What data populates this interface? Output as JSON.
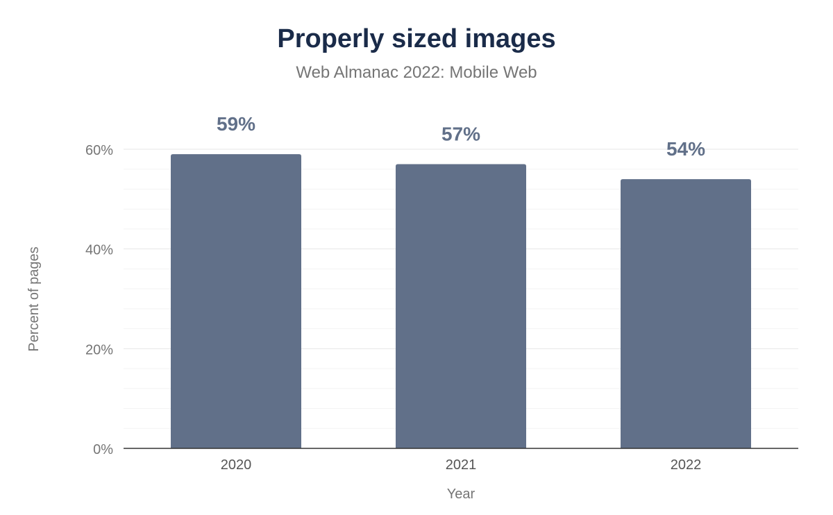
{
  "chart_data": {
    "type": "bar",
    "title": "Properly sized images",
    "subtitle": "Web Almanac 2022: Mobile Web",
    "xlabel": "Year",
    "ylabel": "Percent of pages",
    "categories": [
      "2020",
      "2021",
      "2022"
    ],
    "values": [
      59,
      57,
      54
    ],
    "data_labels": [
      "59%",
      "57%",
      "54%"
    ],
    "ylim": [
      0,
      60
    ],
    "yticks": [
      0,
      20,
      40,
      60
    ],
    "ytick_labels": [
      "0%",
      "20%",
      "40%",
      "60%"
    ],
    "grid": true,
    "colors": {
      "bar": "#617089",
      "title": "#1a2b49",
      "label": "#617089",
      "axis_text": "#757575"
    }
  }
}
